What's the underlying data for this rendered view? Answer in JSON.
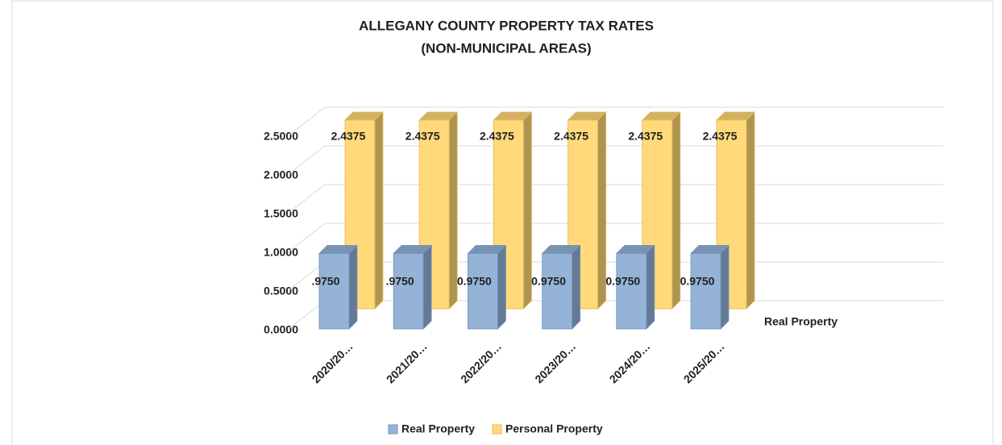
{
  "chart_data": {
    "type": "bar3d",
    "title": "ALLEGANY COUNTY PROPERTY TAX RATES",
    "subtitle": "(NON-MUNICIPAL AREAS)",
    "categories": [
      "2020/20…",
      "2021/20…",
      "2022/20…",
      "2023/20…",
      "2024/20…",
      "2025/20…"
    ],
    "series": [
      {
        "name": "Real Property",
        "color": "#95b3d7",
        "values": [
          0.975,
          0.975,
          0.975,
          0.975,
          0.975,
          0.975
        ],
        "value_labels": [
          ".9750",
          ".9750",
          "0.9750",
          "0.9750",
          "0.9750",
          "0.9750"
        ]
      },
      {
        "name": "Personal Property",
        "color": "#ffd97a",
        "values": [
          2.4375,
          2.4375,
          2.4375,
          2.4375,
          2.4375,
          2.4375
        ],
        "value_labels": [
          "2.4375",
          "2.4375",
          "2.4375",
          "2.4375",
          "2.4375",
          "2.4375"
        ]
      }
    ],
    "depth_axis_label": "Real Property",
    "ylim": [
      0,
      2.5
    ],
    "yticks": [
      {
        "value": 0,
        "label": "0.0000"
      },
      {
        "value": 0.5,
        "label": "0.5000"
      },
      {
        "value": 1,
        "label": "1.0000"
      },
      {
        "value": 1.5,
        "label": "1.5000"
      },
      {
        "value": 2,
        "label": "2.0000"
      },
      {
        "value": 2.5,
        "label": "2.5000"
      }
    ],
    "grid": true,
    "legend": "bottom"
  }
}
